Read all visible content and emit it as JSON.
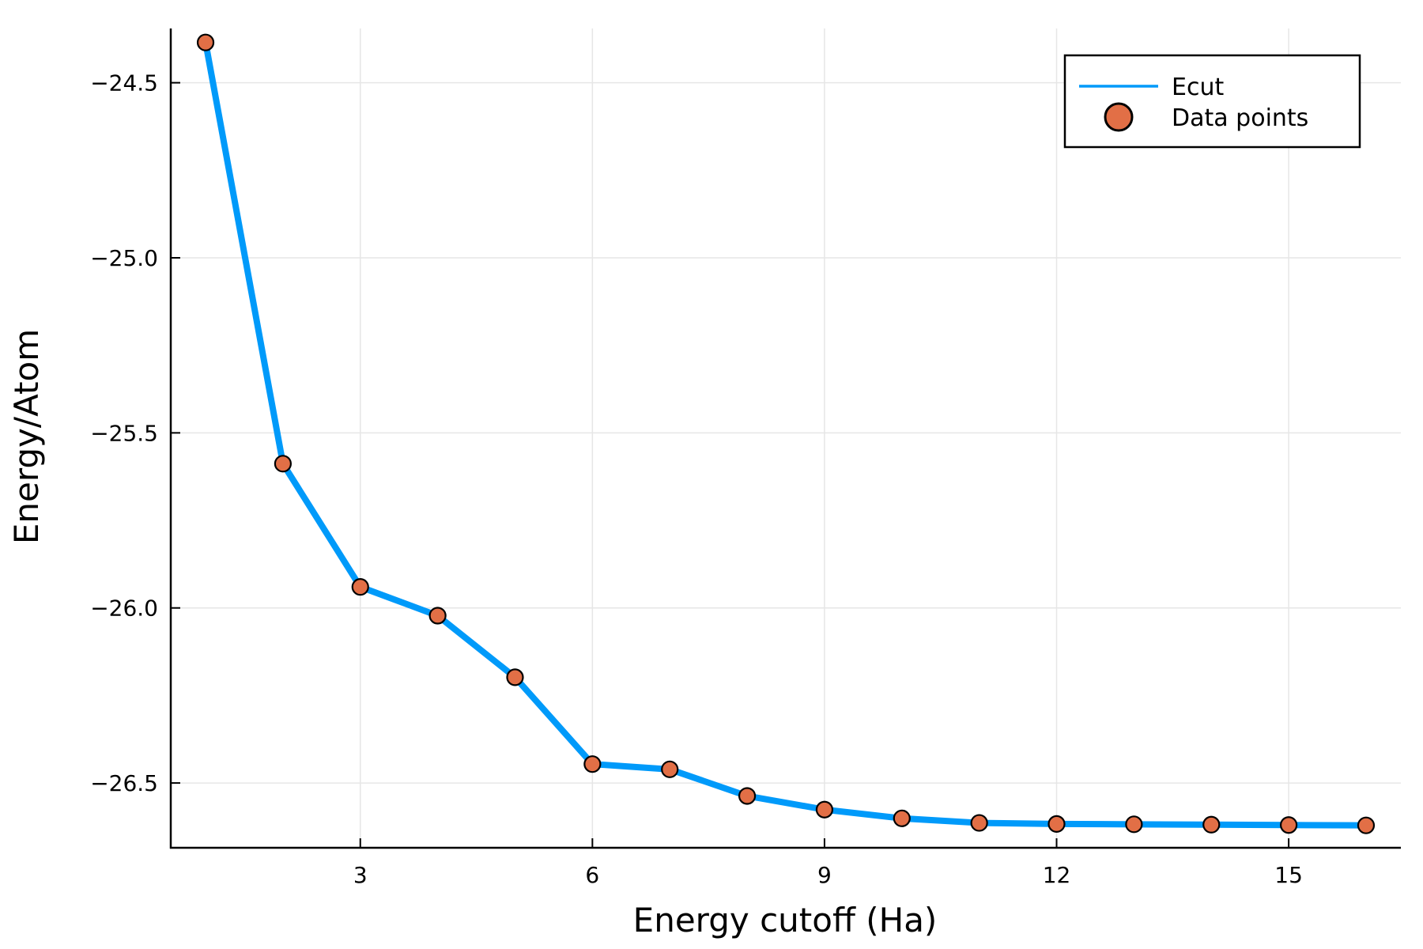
{
  "chart_data": {
    "type": "line",
    "title": "",
    "xlabel": "Energy cutoff (Ha)",
    "ylabel": "Energy/Atom",
    "xlim": [
      0.55,
      16.45
    ],
    "ylim": [
      -26.685,
      -24.345
    ],
    "xticks": [
      3,
      6,
      9,
      12,
      15
    ],
    "xtick_labels": [
      "3",
      "6",
      "9",
      "12",
      "15"
    ],
    "yticks": [
      -24.5,
      -25.0,
      -25.5,
      -26.0,
      -26.5
    ],
    "ytick_labels": [
      "−24.5",
      "−25.0",
      "−25.5",
      "−26.0",
      "−26.5"
    ],
    "grid": true,
    "legend_position": "top-right",
    "x": [
      1,
      2,
      3,
      4,
      5,
      6,
      7,
      8,
      9,
      10,
      11,
      12,
      13,
      14,
      15,
      16
    ],
    "series": [
      {
        "name": "Ecut",
        "style": "line",
        "color": "#009AFA",
        "values": [
          -24.385,
          -25.588,
          -25.94,
          -26.022,
          -26.198,
          -26.446,
          -26.461,
          -26.537,
          -26.576,
          -26.601,
          -26.614,
          -26.617,
          -26.618,
          -26.619,
          -26.62,
          -26.621
        ]
      },
      {
        "name": "Data points",
        "style": "marker",
        "color": "#E26F46",
        "values": [
          -24.385,
          -25.588,
          -25.94,
          -26.022,
          -26.198,
          -26.446,
          -26.461,
          -26.537,
          -26.576,
          -26.601,
          -26.614,
          -26.617,
          -26.618,
          -26.619,
          -26.62,
          -26.621
        ]
      }
    ]
  }
}
